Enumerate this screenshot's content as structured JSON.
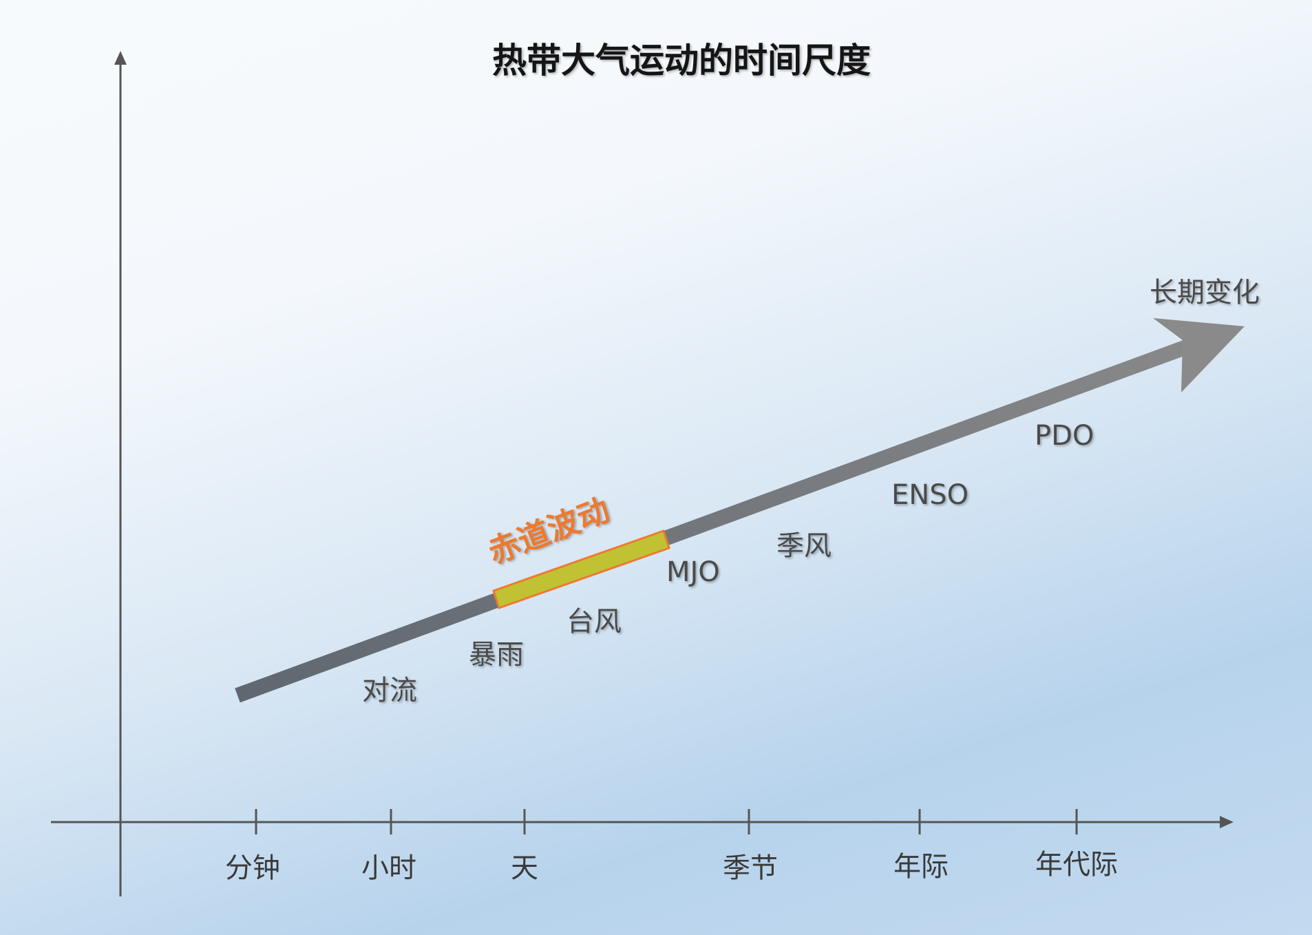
{
  "title": "热带大气运动的时间尺度",
  "x_axis_ticks": [
    "分钟",
    "小时",
    "天",
    "季节",
    "年际",
    "年代际"
  ],
  "arrow_label": "长期变化",
  "highlight": {
    "label": "赤道波动",
    "fill": "#c0c234",
    "stroke": "#ed7a2f"
  },
  "phenomena": [
    "对流",
    "暴雨",
    "台风",
    "MJO",
    "季风",
    "ENSO",
    "PDO"
  ],
  "colors": {
    "axis": "#555555",
    "arrow_start": "#5f6770",
    "arrow_end": "#8a8a8a",
    "label_orange": "#ed7a2f"
  }
}
